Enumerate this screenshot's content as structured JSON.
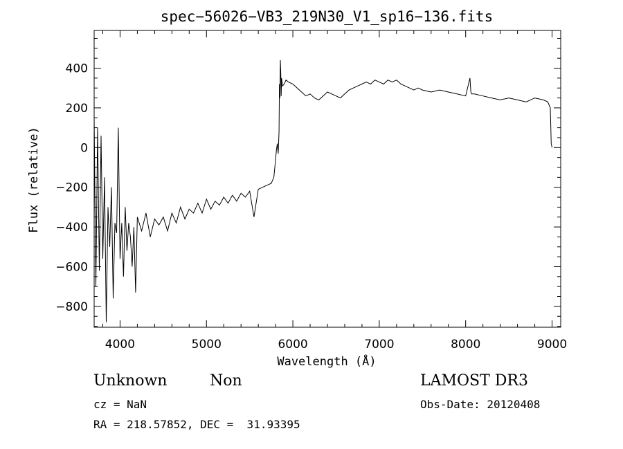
{
  "chart_data": {
    "type": "line",
    "title": "spec−56026−VB3_219N30_V1_sp16−136.fits",
    "xlabel": "Wavelength (Å)",
    "ylabel": "Flux (relative)",
    "xlim": [
      3700,
      9100
    ],
    "ylim": [
      -905,
      590
    ],
    "xticks": [
      4000,
      5000,
      6000,
      7000,
      8000,
      9000
    ],
    "xtick_labels": [
      "4000",
      "5000",
      "6000",
      "7000",
      "8000",
      "9000"
    ],
    "yticks": [
      400,
      200,
      0,
      -200,
      -400,
      -600,
      -800
    ],
    "ytick_labels": [
      "400",
      "200",
      "0",
      "−200",
      "−400",
      "−600",
      "−800"
    ],
    "grid": false,
    "series": [
      {
        "x": [
          3700,
          3720,
          3740,
          3760,
          3780,
          3800,
          3820,
          3840,
          3860,
          3880,
          3900,
          3920,
          3940,
          3960,
          3980,
          4000,
          4020,
          4040,
          4060,
          4080,
          4100,
          4120,
          4140,
          4160,
          4180,
          4200,
          4250,
          4300,
          4350,
          4400,
          4450,
          4500,
          4550,
          4600,
          4650,
          4700,
          4750,
          4800,
          4850,
          4900,
          4950,
          5000,
          5050,
          5100,
          5150,
          5200,
          5250,
          5300,
          5350,
          5400,
          5450,
          5500,
          5550,
          5600,
          5650,
          5700,
          5750,
          5780,
          5800,
          5810,
          5820,
          5830,
          5840,
          5845,
          5850,
          5855,
          5860,
          5865,
          5870,
          5880,
          5900,
          5920,
          5950,
          6000,
          6050,
          6100,
          6150,
          6200,
          6250,
          6300,
          6350,
          6400,
          6450,
          6500,
          6550,
          6600,
          6650,
          6700,
          6750,
          6800,
          6850,
          6900,
          6950,
          7000,
          7050,
          7100,
          7150,
          7200,
          7250,
          7300,
          7350,
          7400,
          7450,
          7500,
          7600,
          7700,
          7800,
          7900,
          8000,
          8050,
          8060,
          8070,
          8100,
          8200,
          8300,
          8400,
          8500,
          8600,
          8700,
          8800,
          8900,
          8950,
          8980,
          8990,
          9000
        ],
        "y": [
          150,
          -700,
          100,
          -620,
          60,
          -560,
          -150,
          -880,
          -300,
          -500,
          -200,
          -760,
          -380,
          -430,
          100,
          -560,
          -380,
          -650,
          -300,
          -520,
          -380,
          -450,
          -600,
          -400,
          -730,
          -350,
          -420,
          -330,
          -450,
          -360,
          -390,
          -350,
          -420,
          -330,
          -380,
          -300,
          -360,
          -310,
          -330,
          -280,
          -330,
          -260,
          -310,
          -270,
          -290,
          -250,
          -280,
          -240,
          -270,
          -230,
          -250,
          -220,
          -350,
          -210,
          -200,
          -190,
          -180,
          -150,
          -60,
          -10,
          20,
          -30,
          80,
          320,
          250,
          440,
          380,
          260,
          350,
          310,
          320,
          340,
          330,
          320,
          300,
          280,
          260,
          270,
          250,
          240,
          260,
          280,
          270,
          260,
          250,
          270,
          290,
          300,
          310,
          320,
          330,
          320,
          340,
          330,
          320,
          340,
          330,
          340,
          320,
          310,
          300,
          290,
          300,
          290,
          280,
          290,
          280,
          270,
          260,
          350,
          280,
          270,
          270,
          260,
          250,
          240,
          250,
          240,
          230,
          250,
          240,
          230,
          200,
          20,
          0
        ]
      }
    ]
  },
  "footer": {
    "object_class": "Unknown",
    "object_subclass": "Non",
    "survey": "LAMOST DR3",
    "cz": "cz = NaN",
    "obs_date": "Obs-Date: 20120408",
    "radec": "RA = 218.57852, DEC =  31.93395"
  }
}
